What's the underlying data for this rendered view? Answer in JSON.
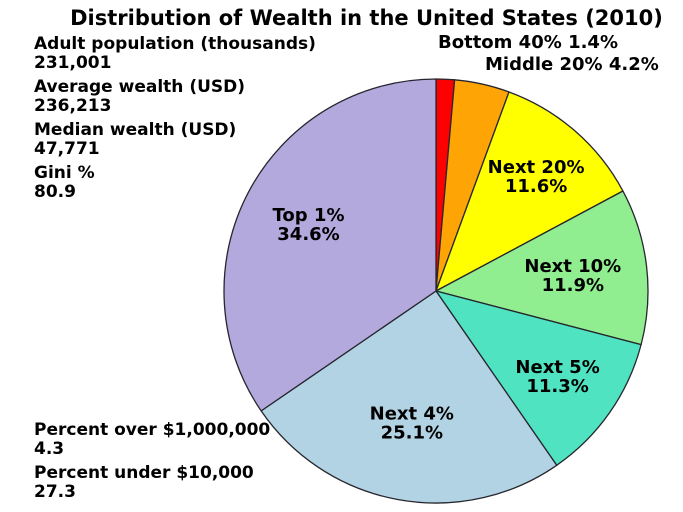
{
  "title": "Distribution of Wealth in the United States (2010)",
  "stats_top_left": [
    {
      "label": "Adult population (thousands)",
      "value": "231,001"
    },
    {
      "label": "Average wealth (USD)",
      "value": "236,213"
    },
    {
      "label": "Median wealth (USD)",
      "value": "47,771"
    },
    {
      "label": "Gini %",
      "value": "80.9"
    }
  ],
  "stats_bottom_left": [
    {
      "label": "Percent over $1,000,000",
      "value": "4.3"
    },
    {
      "label": "Percent under $10,000",
      "value": "27.3"
    }
  ],
  "chart_data": {
    "type": "pie",
    "title": "Distribution of Wealth in the United States (2010)",
    "start_angle": "12 o'clock",
    "direction": "clockwise",
    "legend_position": "none",
    "outline_color": "#26262e",
    "background_color": "#ffffff",
    "slices": [
      {
        "label": "Bottom 40%",
        "value": 1.4,
        "pct_text": "1.4%",
        "color": "#ff0000",
        "label_placement": "outside"
      },
      {
        "label": "Middle 20%",
        "value": 4.2,
        "pct_text": "4.2%",
        "color": "#ffa405",
        "label_placement": "outside"
      },
      {
        "label": "Next 20%",
        "value": 11.6,
        "pct_text": "11.6%",
        "color": "#ffff00",
        "label_placement": "inside"
      },
      {
        "label": "Next 10%",
        "value": 11.9,
        "pct_text": "11.9%",
        "color": "#90ee90",
        "label_placement": "inside"
      },
      {
        "label": "Next 5%",
        "value": 11.3,
        "pct_text": "11.3%",
        "color": "#4fe3c1",
        "label_placement": "inside"
      },
      {
        "label": "Next 4%",
        "value": 25.1,
        "pct_text": "25.1%",
        "color": "#b2d3e3",
        "label_placement": "inside"
      },
      {
        "label": "Top 1%",
        "value": 34.6,
        "pct_text": "34.6%",
        "color": "#b3a9dd",
        "label_placement": "inside"
      }
    ]
  }
}
